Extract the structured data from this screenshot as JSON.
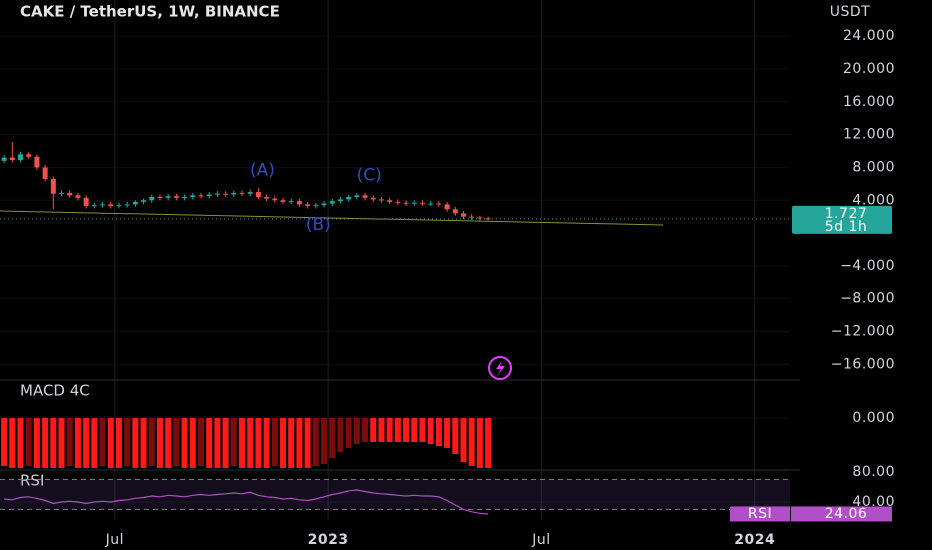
{
  "chart_data": [
    {
      "type": "candlestick",
      "title": "CAKE / TetherUS, 1W, BINANCE",
      "y_axis_label": "USDT",
      "countdown": "5d 1h",
      "up_color": "#26a69a",
      "down_color": "#ef5350",
      "x": [
        0,
        1,
        2,
        3,
        4,
        5,
        6,
        7,
        8,
        9,
        10,
        11,
        12,
        13,
        14,
        15,
        16,
        17,
        18,
        19,
        20,
        21,
        22,
        23,
        24,
        25,
        26,
        27,
        28,
        29,
        30,
        31,
        32,
        33,
        34,
        35,
        36,
        37,
        38,
        39,
        40,
        41,
        42,
        43,
        44,
        45,
        46,
        47,
        48,
        49,
        50,
        51,
        52,
        53,
        54,
        55,
        56,
        57,
        58,
        59
      ],
      "open": [
        8.8,
        9.2,
        8.9,
        9.6,
        9.3,
        8.0,
        6.6,
        4.8,
        4.9,
        4.6,
        4.3,
        3.3,
        3.4,
        3.5,
        3.3,
        3.4,
        3.5,
        3.8,
        4.0,
        4.4,
        4.3,
        4.5,
        4.3,
        4.4,
        4.6,
        4.5,
        4.7,
        4.8,
        4.7,
        4.9,
        4.8,
        5.0,
        4.4,
        4.2,
        4.0,
        3.8,
        3.9,
        3.5,
        3.3,
        3.4,
        3.6,
        3.9,
        4.1,
        4.4,
        4.6,
        4.3,
        4.1,
        4.0,
        3.8,
        3.7,
        3.6,
        3.7,
        3.6,
        3.6,
        3.5,
        2.9,
        2.4,
        2.0,
        1.9,
        1.8
      ],
      "high": [
        9.5,
        11.1,
        9.9,
        9.9,
        9.6,
        8.3,
        6.9,
        5.2,
        5.2,
        4.9,
        4.6,
        3.7,
        3.8,
        3.8,
        3.7,
        3.8,
        4.0,
        4.2,
        4.7,
        4.7,
        4.8,
        4.8,
        4.7,
        4.9,
        4.9,
        5.0,
        5.1,
        5.1,
        5.2,
        5.2,
        5.3,
        5.5,
        4.7,
        4.5,
        4.3,
        4.2,
        4.2,
        3.8,
        3.7,
        3.9,
        4.2,
        4.4,
        4.7,
        4.9,
        4.9,
        4.6,
        4.4,
        4.3,
        4.1,
        4.0,
        4.0,
        4.0,
        3.9,
        3.9,
        3.8,
        3.2,
        2.7,
        2.3,
        2.1,
        2.0
      ],
      "low": [
        8.5,
        8.6,
        8.6,
        9.0,
        7.7,
        6.3,
        2.9,
        4.5,
        4.3,
        4.0,
        3.0,
        3.0,
        3.1,
        3.0,
        3.0,
        3.1,
        3.2,
        3.5,
        3.7,
        4.0,
        4.0,
        4.0,
        4.0,
        4.1,
        4.2,
        4.2,
        4.4,
        4.4,
        4.4,
        4.5,
        4.5,
        4.1,
        3.9,
        3.7,
        3.5,
        3.5,
        3.2,
        3.0,
        3.0,
        3.1,
        3.3,
        3.6,
        3.8,
        4.1,
        4.0,
        3.8,
        3.7,
        3.5,
        3.4,
        3.3,
        3.3,
        3.3,
        3.3,
        3.2,
        2.6,
        2.1,
        1.7,
        1.6,
        1.5,
        1.5
      ],
      "close": [
        9.2,
        8.9,
        9.6,
        9.3,
        8.0,
        6.6,
        4.8,
        4.9,
        4.6,
        4.3,
        3.3,
        3.4,
        3.5,
        3.3,
        3.4,
        3.5,
        3.8,
        4.0,
        4.4,
        4.3,
        4.5,
        4.3,
        4.4,
        4.6,
        4.5,
        4.7,
        4.8,
        4.7,
        4.9,
        4.8,
        5.0,
        4.4,
        4.2,
        4.0,
        3.8,
        3.9,
        3.5,
        3.3,
        3.4,
        3.6,
        3.9,
        4.1,
        4.4,
        4.6,
        4.3,
        4.1,
        4.0,
        3.8,
        3.7,
        3.6,
        3.7,
        3.6,
        3.6,
        3.5,
        2.9,
        2.4,
        2.0,
        1.9,
        1.8,
        1.727
      ],
      "xlim": [
        -0.5,
        95.8
      ],
      "ylim": [
        -17.9,
        28.4
      ],
      "yticks": [
        {
          "value": 24,
          "label": "24.000"
        },
        {
          "value": 20,
          "label": "20.000"
        },
        {
          "value": 16,
          "label": "16.000"
        },
        {
          "value": 12,
          "label": "12.000"
        },
        {
          "value": 8,
          "label": "8.000"
        },
        {
          "value": 4,
          "label": "4.000"
        },
        {
          "value": -4,
          "label": "−4.000"
        },
        {
          "value": -8,
          "label": "−8.000"
        },
        {
          "value": -12,
          "label": "−12.000"
        },
        {
          "value": -16,
          "label": "−16.000"
        }
      ],
      "annotations": [
        {
          "text": "(A)",
          "x": 31.5,
          "y": 7.6
        },
        {
          "text": "(B)",
          "x": 38.3,
          "y": 1.0
        },
        {
          "text": "(C)",
          "x": 44.5,
          "y": 7.0
        }
      ]
    },
    {
      "type": "histogram",
      "title": "MACD 4C",
      "falling_color": "#ff1a1a",
      "rising_color": "#7a0c0c",
      "x": [
        0,
        1,
        2,
        3,
        4,
        5,
        6,
        7,
        8,
        9,
        10,
        11,
        12,
        13,
        14,
        15,
        16,
        17,
        18,
        19,
        20,
        21,
        22,
        23,
        24,
        25,
        26,
        27,
        28,
        29,
        30,
        31,
        32,
        33,
        34,
        35,
        36,
        37,
        38,
        39,
        40,
        41,
        42,
        43,
        44,
        45,
        46,
        47,
        48,
        49,
        50,
        51,
        52,
        53,
        54,
        55,
        56,
        57,
        58,
        59
      ],
      "values": [
        -2.4,
        -2.5,
        -2.5,
        -2.4,
        -2.5,
        -2.5,
        -2.5,
        -2.5,
        -2.4,
        -2.5,
        -2.5,
        -2.5,
        -2.4,
        -2.5,
        -2.5,
        -2.4,
        -2.5,
        -2.5,
        -2.4,
        -2.5,
        -2.5,
        -2.4,
        -2.5,
        -2.5,
        -2.4,
        -2.5,
        -2.5,
        -2.5,
        -2.4,
        -2.5,
        -2.5,
        -2.5,
        -2.5,
        -2.4,
        -2.5,
        -2.5,
        -2.5,
        -2.5,
        -2.4,
        -2.3,
        -2.0,
        -1.7,
        -1.5,
        -1.3,
        -1.2,
        -1.2,
        -1.2,
        -1.2,
        -1.2,
        -1.2,
        -1.2,
        -1.2,
        -1.3,
        -1.4,
        -1.5,
        -1.8,
        -2.2,
        -2.4,
        -2.5,
        -2.5
      ],
      "xlim": [
        -0.5,
        95.8
      ],
      "ylim": [
        -2.6,
        1.9
      ],
      "yticks": [
        {
          "value": 0,
          "label": "0.000"
        }
      ]
    },
    {
      "type": "line",
      "bands": [
        70,
        30
      ],
      "band_color": "#7e57c2",
      "series": [
        {
          "name": "RSI",
          "color": "#b04fc8",
          "values": [
            44,
            43,
            46,
            47,
            45,
            42,
            38,
            40,
            41,
            40,
            38,
            40,
            41,
            40,
            42,
            43,
            45,
            46,
            48,
            47,
            49,
            48,
            47,
            49,
            50,
            49,
            50,
            51,
            52,
            51,
            53,
            49,
            47,
            46,
            44,
            45,
            43,
            42,
            44,
            47,
            50,
            52,
            55,
            56,
            54,
            52,
            51,
            50,
            49,
            48,
            49,
            48,
            48,
            47,
            42,
            36,
            30,
            27,
            25,
            24.06
          ]
        }
      ],
      "x": [
        0,
        1,
        2,
        3,
        4,
        5,
        6,
        7,
        8,
        9,
        10,
        11,
        12,
        13,
        14,
        15,
        16,
        17,
        18,
        19,
        20,
        21,
        22,
        23,
        24,
        25,
        26,
        27,
        28,
        29,
        30,
        31,
        32,
        33,
        34,
        35,
        36,
        37,
        38,
        39,
        40,
        41,
        42,
        43,
        44,
        45,
        46,
        47,
        48,
        49,
        50,
        51,
        52,
        53,
        54,
        55,
        56,
        57,
        58,
        59
      ],
      "xlim": [
        -0.5,
        95.8
      ],
      "ylim": [
        16,
        82.7
      ],
      "yticks": [
        {
          "value": 80,
          "label": "80.00"
        },
        {
          "value": 40,
          "label": "40.00"
        }
      ],
      "xticks": [
        {
          "value": 13.5,
          "label": "Jul"
        },
        {
          "value": 39.5,
          "label": "2023"
        },
        {
          "value": 65.5,
          "label": "Jul"
        },
        {
          "value": 91.5,
          "label": "2024"
        }
      ]
    }
  ]
}
